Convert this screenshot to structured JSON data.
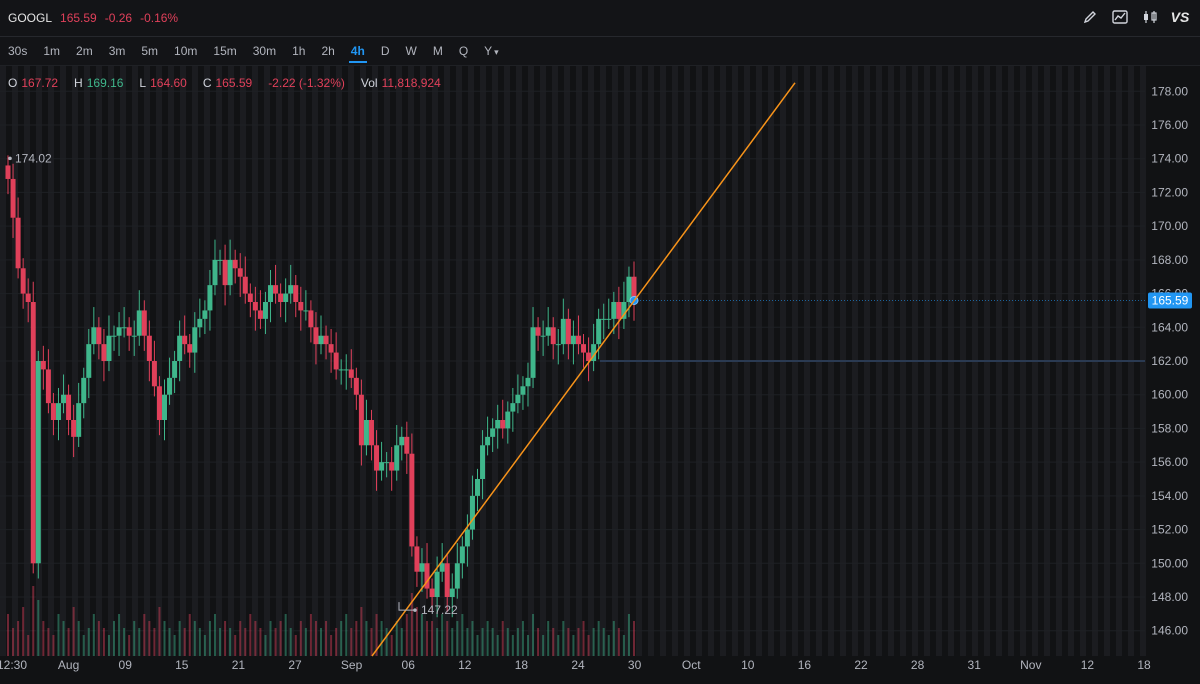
{
  "header": {
    "symbol": "GOOGL",
    "price": "165.59",
    "change": "-0.26",
    "change_pct": "-0.16%",
    "tools": [
      "pencil-icon",
      "line-chart-icon",
      "candles-icon"
    ],
    "vs_label": "VS"
  },
  "intervals": {
    "items": [
      "30s",
      "1m",
      "2m",
      "3m",
      "5m",
      "10m",
      "15m",
      "30m",
      "1h",
      "2h",
      "4h",
      "D",
      "W",
      "M",
      "Q",
      "Y"
    ],
    "active": "4h",
    "dropdown_marker": "▾"
  },
  "ohlc": {
    "o_label": "O",
    "o": "167.72",
    "h_label": "H",
    "h": "169.16",
    "l_label": "L",
    "l": "164.60",
    "c_label": "C",
    "c": "165.59",
    "chg": "-2.22 (-1.32%)",
    "vol_label": "Vol",
    "vol": "11,818,924"
  },
  "colors": {
    "up": "#3fb68b",
    "down": "#e0405a",
    "trendline": "#f7931a",
    "price_tag": "#2196f3",
    "background": "#111214"
  },
  "chart_data": {
    "type": "candlestick",
    "y_ticks": [
      "146.00",
      "148.00",
      "150.00",
      "152.00",
      "154.00",
      "156.00",
      "158.00",
      "160.00",
      "162.00",
      "164.00",
      "166.00",
      "168.00",
      "170.00",
      "172.00",
      "174.00",
      "176.00",
      "178.00"
    ],
    "ylim": [
      144.5,
      179.5
    ],
    "x_ticks": [
      "12:30",
      "Aug",
      "09",
      "15",
      "21",
      "27",
      "Sep",
      "06",
      "12",
      "18",
      "24",
      "30",
      "Oct",
      "10",
      "16",
      "22",
      "28",
      "31",
      "Nov",
      "12",
      "18"
    ],
    "last_price_label": "165.59",
    "high_marker": {
      "label": "174.02",
      "value": 174.02
    },
    "low_marker": {
      "label": "147.22",
      "value": 147.22
    },
    "horizontal_level": 162.0,
    "trendline": {
      "from_value": 144.5,
      "to_value": 178.5
    },
    "closes": [
      172.8,
      170.5,
      167.5,
      166.0,
      165.5,
      150.0,
      162.0,
      161.5,
      159.5,
      158.5,
      159.5,
      160.0,
      158.5,
      157.5,
      159.5,
      161.0,
      163.0,
      164.0,
      163.0,
      162.0,
      163.5,
      163.5,
      164.0,
      164.0,
      163.5,
      163.5,
      165.0,
      163.5,
      162.0,
      160.5,
      158.5,
      160.0,
      161.0,
      162.0,
      163.5,
      163.0,
      162.5,
      164.0,
      164.5,
      165.0,
      166.5,
      168.0,
      168.0,
      166.5,
      168.0,
      167.5,
      167.0,
      166.0,
      165.5,
      165.0,
      164.5,
      165.5,
      166.5,
      166.0,
      165.5,
      166.0,
      166.5,
      165.5,
      165.0,
      165.0,
      164.0,
      163.0,
      163.5,
      163.0,
      162.5,
      161.5,
      161.5,
      161.5,
      161.0,
      160.0,
      157.0,
      158.5,
      157.0,
      155.5,
      156.0,
      156.0,
      155.5,
      157.0,
      157.5,
      156.5,
      151.0,
      149.5,
      150.0,
      148.5,
      148.0,
      149.5,
      150.0,
      148.0,
      148.5,
      150.0,
      151.0,
      152.0,
      154.0,
      155.0,
      157.0,
      157.5,
      158.0,
      158.5,
      158.0,
      159.0,
      159.5,
      160.0,
      160.5,
      161.0,
      164.0,
      163.5,
      163.5,
      164.0,
      163.0,
      163.0,
      164.5,
      163.0,
      163.5,
      163.0,
      162.5,
      162.0,
      163.0,
      164.5,
      164.5,
      164.5,
      165.5,
      164.5,
      165.5,
      167.0,
      165.59
    ],
    "volumes": [
      0.6,
      0.4,
      0.5,
      0.7,
      0.3,
      1.0,
      0.8,
      0.5,
      0.4,
      0.3,
      0.6,
      0.5,
      0.4,
      0.7,
      0.5,
      0.3,
      0.4,
      0.6,
      0.5,
      0.4,
      0.3,
      0.5,
      0.6,
      0.4,
      0.3,
      0.5,
      0.4,
      0.6,
      0.5,
      0.4,
      0.7,
      0.5,
      0.4,
      0.3,
      0.5,
      0.4,
      0.6,
      0.5,
      0.4,
      0.3,
      0.5,
      0.6,
      0.4,
      0.5,
      0.4,
      0.3,
      0.5,
      0.4,
      0.6,
      0.5,
      0.4,
      0.3,
      0.5,
      0.4,
      0.5,
      0.6,
      0.4,
      0.3,
      0.5,
      0.4,
      0.6,
      0.5,
      0.4,
      0.5,
      0.3,
      0.4,
      0.5,
      0.6,
      0.4,
      0.5,
      0.7,
      0.5,
      0.4,
      0.6,
      0.5,
      0.4,
      0.3,
      0.5,
      0.4,
      0.6,
      0.9,
      0.7,
      0.6,
      0.5,
      0.5,
      0.4,
      0.6,
      0.5,
      0.4,
      0.5,
      0.6,
      0.4,
      0.5,
      0.3,
      0.4,
      0.5,
      0.4,
      0.3,
      0.5,
      0.4,
      0.3,
      0.4,
      0.5,
      0.3,
      0.6,
      0.4,
      0.3,
      0.5,
      0.4,
      0.3,
      0.5,
      0.4,
      0.3,
      0.4,
      0.5,
      0.3,
      0.4,
      0.5,
      0.4,
      0.3,
      0.5,
      0.4,
      0.3,
      0.6,
      0.5
    ]
  }
}
